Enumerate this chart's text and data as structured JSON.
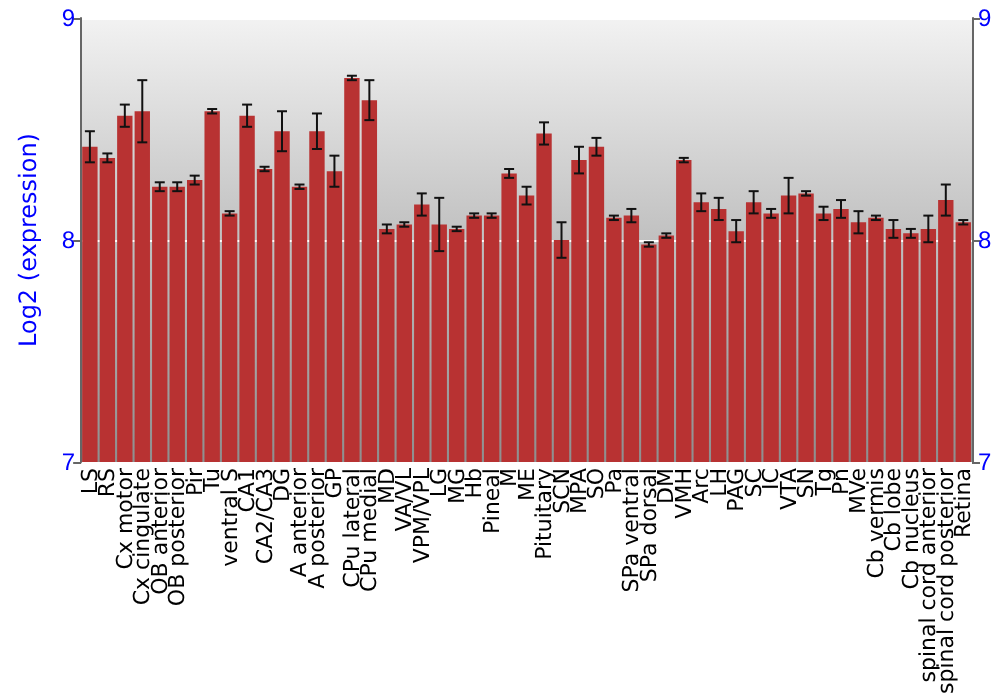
{
  "chart_data": {
    "type": "bar",
    "ylabel": "Log2 (expression)",
    "categories": [
      "LS",
      "RS",
      "Cx motor",
      "Cx cingulate",
      "OB anterior",
      "OB posterior",
      "Pir",
      "Tu",
      "ventral S",
      "CA1",
      "CA2/CA3",
      "DG",
      "A anterior",
      "A posterior",
      "GP",
      "CPu lateral",
      "CPu medial",
      "MD",
      "VA/VL",
      "VPM/VPL",
      "LG",
      "MG",
      "Hb",
      "Pineal",
      "M",
      "ME",
      "Pituitary",
      "SCN",
      "MPA",
      "SO",
      "Pa",
      "SPa ventral",
      "SPa dorsal",
      "DM",
      "VMH",
      "Arc",
      "LH",
      "PAG",
      "SC",
      "IC",
      "VTA",
      "SN",
      "Tg",
      "Pn",
      "MVe",
      "Cb vermis",
      "Cb lobe",
      "Cb nucleus",
      "spinal cord anterior",
      "spinal cord posterior",
      "Retina"
    ],
    "values": [
      8.42,
      8.37,
      8.56,
      8.58,
      8.24,
      8.24,
      8.27,
      8.58,
      8.12,
      8.56,
      8.32,
      8.49,
      8.24,
      8.49,
      8.31,
      8.73,
      8.63,
      8.05,
      8.07,
      8.16,
      8.07,
      8.05,
      8.11,
      8.11,
      8.3,
      8.2,
      8.48,
      8.0,
      8.36,
      8.42,
      8.1,
      8.11,
      7.98,
      8.02,
      8.36,
      8.17,
      8.14,
      8.04,
      8.17,
      8.12,
      8.2,
      8.21,
      8.12,
      8.14,
      8.08,
      8.1,
      8.05,
      8.03,
      8.05,
      8.18,
      8.08
    ],
    "errors": [
      0.07,
      0.02,
      0.05,
      0.14,
      0.02,
      0.02,
      0.02,
      0.01,
      0.01,
      0.05,
      0.01,
      0.09,
      0.01,
      0.08,
      0.07,
      0.01,
      0.09,
      0.02,
      0.01,
      0.05,
      0.12,
      0.01,
      0.01,
      0.01,
      0.02,
      0.04,
      0.05,
      0.08,
      0.06,
      0.04,
      0.01,
      0.03,
      0.01,
      0.01,
      0.01,
      0.04,
      0.05,
      0.05,
      0.05,
      0.02,
      0.08,
      0.01,
      0.03,
      0.04,
      0.05,
      0.01,
      0.04,
      0.02,
      0.06,
      0.07,
      0.01
    ],
    "color": "#b83232",
    "ylim": [
      7,
      9
    ],
    "yticks": [
      7,
      8,
      9
    ],
    "y2lim": [
      7,
      9
    ],
    "y2ticks": [
      7,
      8,
      9
    ],
    "grid": "y"
  }
}
